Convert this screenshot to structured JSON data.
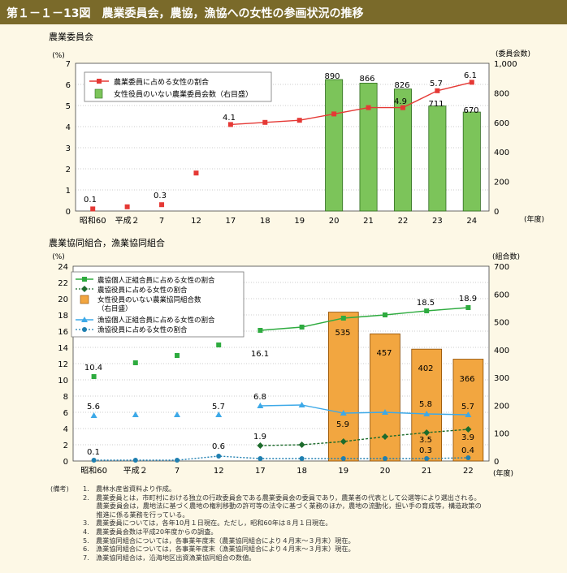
{
  "header": {
    "title": "第１－１－13図　農業委員会，農協，漁協への女性の参画状況の推移"
  },
  "colors": {
    "header_bg": "#7a6a2a",
    "page_bg": "#fdf8e6",
    "chart1_line": "#e53935",
    "chart1_bar": "#7cc45a",
    "green_line": "#2eab3f",
    "darkgreen_line": "#1d6b2c",
    "bar_orange": "#f2a640",
    "blue_line": "#3da9e8",
    "navy_line": "#1f7fb0"
  },
  "charts": {
    "top": {
      "section_title": "農業委員会",
      "left_unit": "(%)",
      "right_unit": "(委員会数)",
      "x_unit": "(年度)",
      "categories": [
        "昭和60",
        "平成２",
        "7",
        "12",
        "17",
        "18",
        "19",
        "20",
        "21",
        "22",
        "23",
        "24"
      ],
      "y_ticks": [
        "0",
        "1",
        "2",
        "3",
        "4",
        "5",
        "6",
        "7"
      ],
      "y2_ticks": [
        "0",
        "200",
        "400",
        "600",
        "800",
        "1,000"
      ],
      "legend": [
        "農業委員に占める女性の割合",
        "女性役員のいない農業委員会数（右目盛）"
      ],
      "bar_labels": [
        "890",
        "866",
        "826",
        "711",
        "670"
      ],
      "line_labels": [
        "0.1",
        "0.3",
        "4.1",
        "4.9",
        "5.7",
        "6.1"
      ]
    },
    "bottom": {
      "section_title": "農業協同組合，漁業協同組合",
      "left_unit": "(%)",
      "right_unit": "(組合数)",
      "x_unit": "(年度)",
      "categories": [
        "昭和60",
        "平成２",
        "7",
        "12",
        "17",
        "18",
        "19",
        "20",
        "21",
        "22"
      ],
      "y_ticks": [
        "0",
        "2",
        "4",
        "6",
        "8",
        "10",
        "12",
        "14",
        "16",
        "18",
        "20",
        "22",
        "24"
      ],
      "y2_ticks": [
        "0",
        "100",
        "200",
        "300",
        "400",
        "500",
        "600",
        "700"
      ],
      "legend": [
        "農協個人正組合員に占める女性の割合",
        "農協役員に占める女性の割合",
        "女性役員のいない農業協同組合数",
        "（右目盛）",
        "漁協個人正組合員に占める女性の割合",
        "漁協役員に占める女性の割合"
      ],
      "bar_labels": [
        "535",
        "457",
        "402",
        "366"
      ],
      "green_labels": [
        "10.4",
        "16.1",
        "18.5",
        "18.9"
      ],
      "blue_labels": [
        "5.6",
        "5.7",
        "6.8",
        "5.9",
        "5.8",
        "5.7"
      ],
      "darkgreen_labels": [
        "1.9",
        "3.5",
        "3.9"
      ],
      "navy_labels": [
        "0.1",
        "0.6",
        "0.3",
        "0.4"
      ]
    }
  },
  "chart_data": [
    {
      "type": "bar",
      "title": "農業委員会",
      "ylabel": "(%)",
      "y2label": "(委員会数)",
      "xlabel": "(年度)",
      "categories": [
        "昭和60",
        "平成２",
        "7",
        "12",
        "17",
        "18",
        "19",
        "20",
        "21",
        "22",
        "23",
        "24"
      ],
      "ylim": [
        0,
        7
      ],
      "y2lim": [
        0,
        1000
      ],
      "series": [
        {
          "name": "農業委員に占める女性の割合",
          "kind": "line",
          "axis": "left",
          "values": [
            0.1,
            0.2,
            0.3,
            1.8,
            4.1,
            4.2,
            4.3,
            4.6,
            4.9,
            4.9,
            5.7,
            6.1
          ]
        },
        {
          "name": "女性役員のいない農業委員会数（右目盛）",
          "kind": "bar",
          "axis": "right",
          "values": [
            null,
            null,
            null,
            null,
            null,
            null,
            null,
            890,
            866,
            826,
            711,
            670
          ]
        }
      ],
      "legend_position": "top-left"
    },
    {
      "type": "bar",
      "title": "農業協同組合，漁業協同組合",
      "ylabel": "(%)",
      "y2label": "(組合数)",
      "xlabel": "(年度)",
      "categories": [
        "昭和60",
        "平成２",
        "7",
        "12",
        "17",
        "18",
        "19",
        "20",
        "21",
        "22"
      ],
      "ylim": [
        0,
        24
      ],
      "y2lim": [
        0,
        700
      ],
      "series": [
        {
          "name": "農協個人正組合員に占める女性の割合",
          "kind": "line",
          "axis": "left",
          "values": [
            10.4,
            12.1,
            13.0,
            14.3,
            16.1,
            16.5,
            17.6,
            18.0,
            18.5,
            18.9
          ]
        },
        {
          "name": "農協役員に占める女性の割合",
          "kind": "line",
          "axis": "left",
          "values": [
            null,
            null,
            null,
            null,
            1.9,
            2.0,
            2.4,
            3.0,
            3.5,
            3.9
          ]
        },
        {
          "name": "女性役員のいない農業協同組合数（右目盛）",
          "kind": "bar",
          "axis": "right",
          "values": [
            null,
            null,
            null,
            null,
            null,
            null,
            535,
            457,
            402,
            366
          ]
        },
        {
          "name": "漁協個人正組合員に占める女性の割合",
          "kind": "line",
          "axis": "left",
          "values": [
            5.6,
            5.7,
            5.7,
            5.7,
            6.8,
            6.9,
            5.9,
            6.0,
            5.8,
            5.7
          ]
        },
        {
          "name": "漁協役員に占める女性の割合",
          "kind": "line",
          "axis": "left",
          "values": [
            0.1,
            0.1,
            0.1,
            0.6,
            0.3,
            0.3,
            0.3,
            0.3,
            0.3,
            0.4
          ]
        }
      ],
      "legend_position": "top-left"
    }
  ],
  "notes": {
    "label": "(備考)",
    "items": [
      "1.　農林水産省資料より作成。",
      "2.　農業委員とは，市町村における独立の行政委員会である農業委員会の委員であり，農業者の代表として公選等により選出される。",
      "　　農業委員会は，農地法に基づく農地の権利移動の許可等の法令に基づく業務のほか，農地の流動化，担い手の育成等，構造政策の",
      "　　推進に係る業務を行っている。",
      "3.　農業委員については，各年10月１日現在。ただし，昭和60年は８月１日現在。",
      "4.　農業委員会数は平成20年度からの調査。",
      "5.　農業協同組合については，各事業年度末（農業協同組合により４月末～３月末）現在。",
      "6.　漁業協同組合については，各事業年度末（漁業協同組合により４月末～３月末）現在。",
      "7.　漁業協同組合は，沿海地区出資漁業協同組合の数値。"
    ]
  }
}
